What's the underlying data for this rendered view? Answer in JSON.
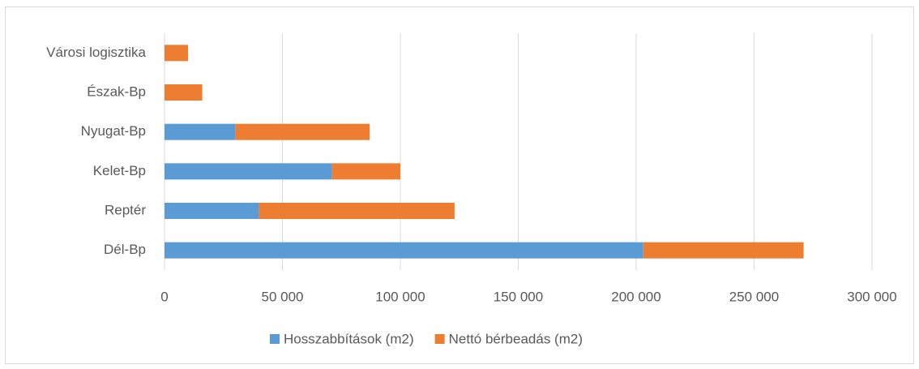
{
  "chart_data": {
    "type": "bar",
    "orientation": "horizontal",
    "stacked": true,
    "categories": [
      "Dél-Bp",
      "Reptér",
      "Kelet-Bp",
      "Nyugat-Bp",
      "Észak-Bp",
      "Városi logisztika"
    ],
    "series": [
      {
        "name": "Hosszabbítások (m2)",
        "color": "#5b9bd5",
        "values": [
          203000,
          40000,
          71000,
          30000,
          0,
          0
        ]
      },
      {
        "name": "Nettó bérbeadás (m2)",
        "color": "#ed7d31",
        "values": [
          68000,
          83000,
          29000,
          57000,
          16000,
          10000
        ]
      }
    ],
    "xlim": [
      0,
      300000
    ],
    "xticks": [
      0,
      {
        "value": 50000,
        "label": "50 000"
      },
      {
        "value": 100000,
        "label": "100 000"
      },
      {
        "value": 150000,
        "label": "150 000"
      },
      {
        "value": 200000,
        "label": "200 000"
      },
      {
        "value": 250000,
        "label": "250 000"
      },
      {
        "value": 300000,
        "label": "300 000"
      }
    ],
    "grid": true,
    "legend": "bottom"
  }
}
